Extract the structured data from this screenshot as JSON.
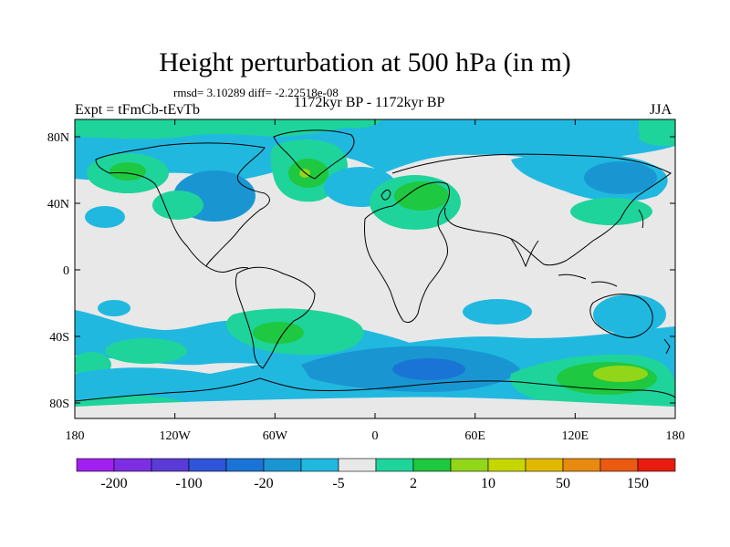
{
  "title": "Height perturbation at 500 hPa (in m)",
  "stats": "rmsd= 3.10289 diff= -2.22518e-08",
  "period": "1172kyr BP - 1172kyr BP",
  "expt": "Expt = tFmCb-tEvTb",
  "season": "JJA",
  "lat_labels": [
    "80N",
    "40N",
    "0",
    "40S",
    "80S"
  ],
  "lon_labels": [
    "180",
    "120W",
    "60W",
    "0",
    "60E",
    "120E",
    "180"
  ],
  "colorbar": {
    "labels": [
      "-200",
      "-100",
      "-20",
      "-5",
      "2",
      "10",
      "50",
      "150"
    ],
    "colors": [
      "#a020f0",
      "#7d2ee3",
      "#5a3bd6",
      "#2f55d9",
      "#1a74d6",
      "#1996d2",
      "#21b8e0",
      "#e8e8e8",
      "#1ed49a",
      "#1ec840",
      "#91d618",
      "#c6d600",
      "#e0b800",
      "#e88a10",
      "#ea5a10",
      "#e81c10"
    ]
  },
  "palette": {
    "ocean_gray": "#e8e8e8",
    "sky_blue": "#21b8e0",
    "mid_blue": "#1996d2",
    "blue": "#1a74d6",
    "deep_blue": "#2f55d9",
    "teal_green": "#1ed49a",
    "green": "#1ec840",
    "yellow_green": "#91d618",
    "coast": "#000000"
  }
}
